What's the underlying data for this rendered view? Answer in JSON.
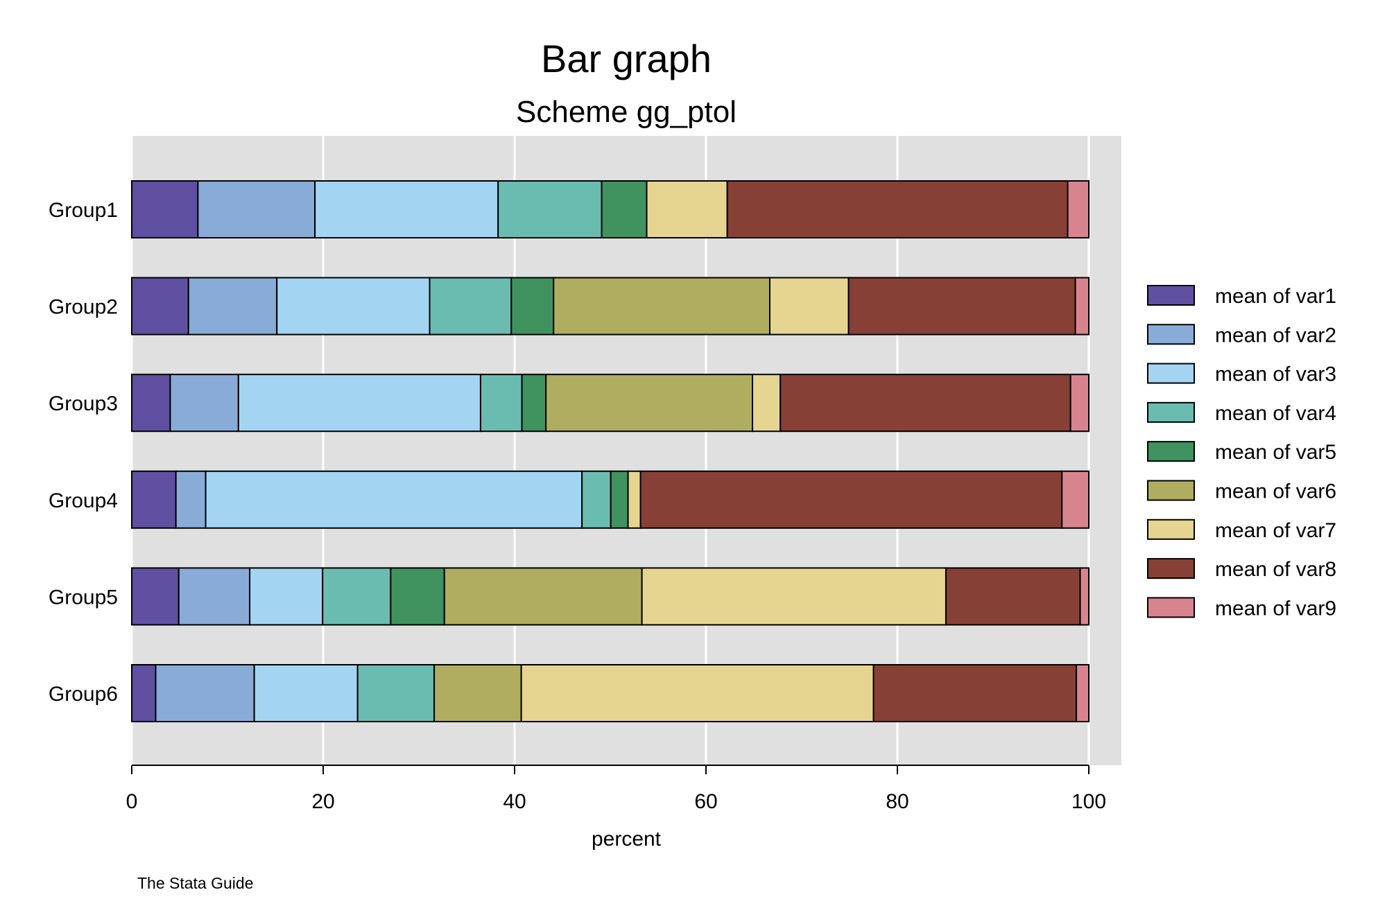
{
  "chart_data": {
    "type": "bar",
    "orientation": "horizontal",
    "stacked": "percent",
    "title": "Bar graph",
    "subtitle": "Scheme gg_ptol",
    "xlabel": "percent",
    "xlim": [
      0,
      100
    ],
    "xticks": [
      "0",
      "20",
      "40",
      "60",
      "80",
      "100"
    ],
    "grid": true,
    "legend_position": "right",
    "note": "The Stata Guide",
    "categories": [
      "Group1",
      "Group2",
      "Group3",
      "Group4",
      "Group5",
      "Group6"
    ],
    "series": [
      {
        "name": "mean of var1",
        "color": "#5f50a1",
        "values": [
          6.9,
          5.9,
          4.0,
          4.6,
          4.9,
          2.5
        ]
      },
      {
        "name": "mean of var2",
        "color": "#88acd7",
        "values": [
          12.2,
          9.2,
          7.1,
          3.1,
          7.4,
          10.3
        ]
      },
      {
        "name": "mean of var3",
        "color": "#a3d5f2",
        "values": [
          19.1,
          15.9,
          25.2,
          39.2,
          7.6,
          10.8
        ]
      },
      {
        "name": "mean of var4",
        "color": "#6abcb0",
        "values": [
          10.8,
          8.5,
          4.3,
          3.0,
          7.1,
          8.0
        ]
      },
      {
        "name": "mean of var5",
        "color": "#40925e",
        "values": [
          4.7,
          4.4,
          2.5,
          1.8,
          5.6,
          0.0
        ]
      },
      {
        "name": "mean of var6",
        "color": "#afad5f",
        "values": [
          0.0,
          22.5,
          21.5,
          0.0,
          20.6,
          9.1
        ]
      },
      {
        "name": "mean of var7",
        "color": "#e5d591",
        "values": [
          8.4,
          8.2,
          2.9,
          1.3,
          31.7,
          36.8
        ]
      },
      {
        "name": "mean of var8",
        "color": "#874036",
        "values": [
          35.5,
          23.6,
          30.2,
          43.9,
          14.0,
          21.2
        ]
      },
      {
        "name": "mean of var9",
        "color": "#d8848f",
        "values": [
          2.2,
          1.4,
          1.9,
          2.8,
          0.9,
          1.3
        ]
      }
    ]
  }
}
